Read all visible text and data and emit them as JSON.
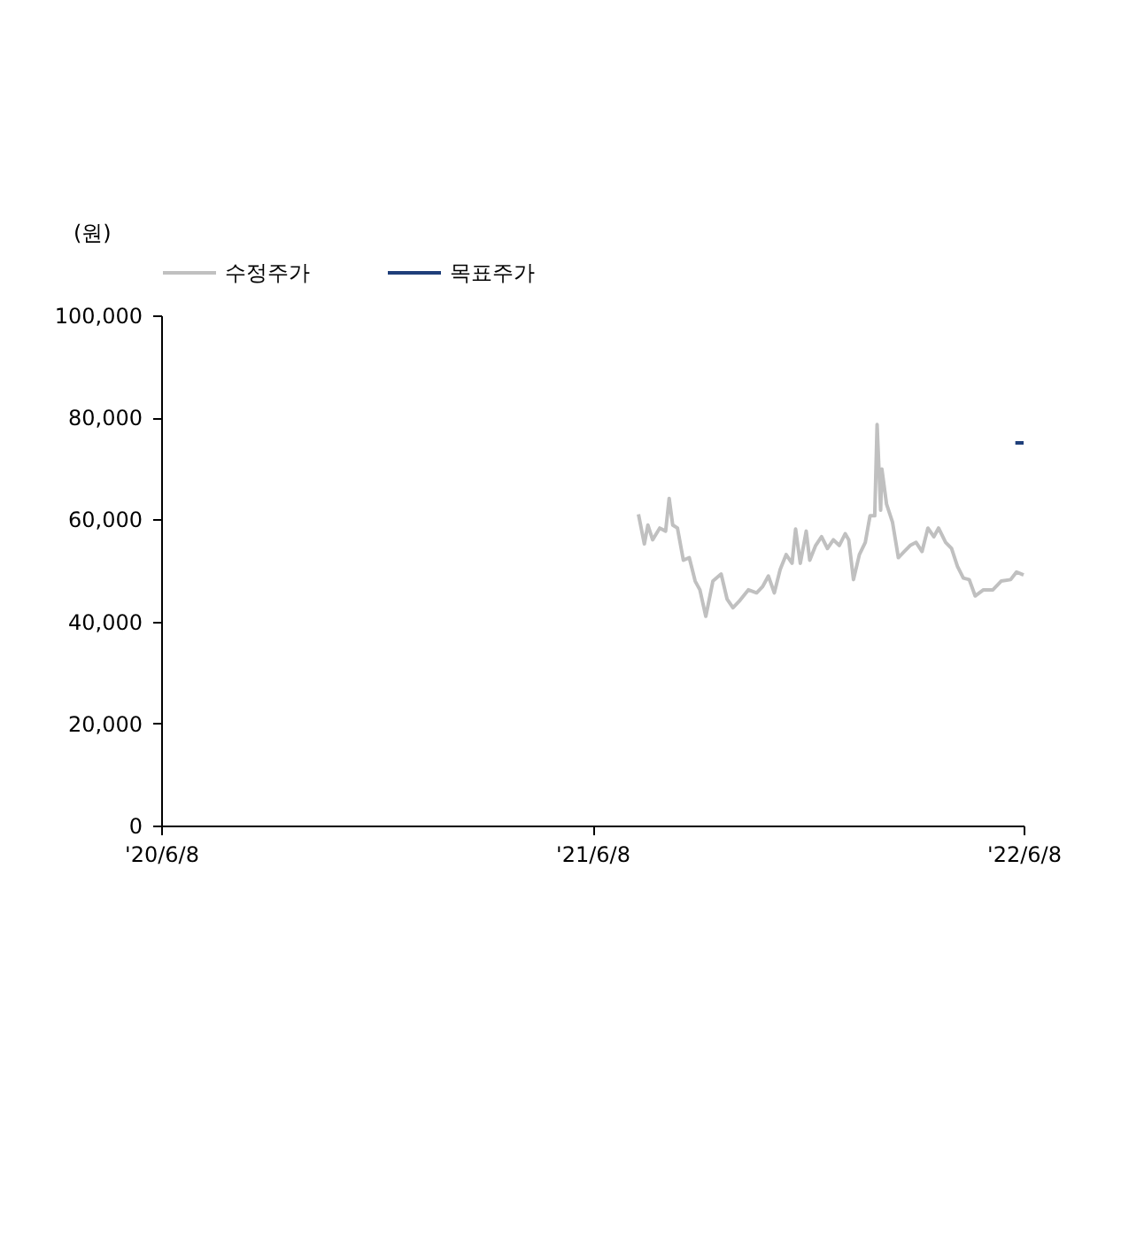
{
  "chart_data": {
    "type": "line",
    "ylabel": "(원)",
    "xlim": [
      "2020-06-08",
      "2022-06-08"
    ],
    "xticks": [
      {
        "value": "2020-06-08",
        "label": "'20/6/8"
      },
      {
        "value": "2021-06-08",
        "label": "'21/6/8"
      },
      {
        "value": "2022-06-08",
        "label": "'22/6/8"
      }
    ],
    "ylim": [
      0,
      100000
    ],
    "yticks": [
      0,
      {
        "value": 20000,
        "label": "20,000"
      },
      {
        "value": 40000,
        "label": "40,000"
      },
      {
        "value": 60000,
        "label": "60,000"
      },
      {
        "value": 80000,
        "label": "80,000"
      },
      {
        "value": 100000,
        "label": "100,000"
      }
    ],
    "grid": false,
    "legend": "top",
    "marker": "none",
    "line_style": "solid",
    "series": [
      {
        "name": "수정주가",
        "color": "#c0c0c0",
        "x": [
          "2021-07-17",
          "2021-07-22",
          "2021-07-25",
          "2021-07-29",
          "2021-08-04",
          "2021-08-09",
          "2021-08-12",
          "2021-08-15",
          "2021-08-19",
          "2021-08-24",
          "2021-08-29",
          "2021-09-03",
          "2021-09-07",
          "2021-09-12",
          "2021-09-15",
          "2021-09-18",
          "2021-09-25",
          "2021-09-30",
          "2021-10-05",
          "2021-10-10",
          "2021-10-18",
          "2021-10-25",
          "2021-10-30",
          "2021-11-04",
          "2021-11-09",
          "2021-11-14",
          "2021-11-19",
          "2021-11-24",
          "2021-11-27",
          "2021-12-01",
          "2021-12-06",
          "2021-12-09",
          "2021-12-14",
          "2021-12-19",
          "2021-12-24",
          "2021-12-29",
          "2022-01-03",
          "2022-01-08",
          "2022-01-11",
          "2022-01-15",
          "2022-01-20",
          "2022-01-25",
          "2022-01-29",
          "2022-02-02",
          "2022-02-04",
          "2022-02-07",
          "2022-02-08",
          "2022-02-12",
          "2022-02-17",
          "2022-02-22",
          "2022-02-27",
          "2022-03-04",
          "2022-03-09",
          "2022-03-14",
          "2022-03-19",
          "2022-03-24",
          "2022-03-28",
          "2022-04-03",
          "2022-04-08",
          "2022-04-13",
          "2022-04-18",
          "2022-04-23",
          "2022-04-28",
          "2022-05-05",
          "2022-05-13",
          "2022-05-20",
          "2022-05-28",
          "2022-06-02",
          "2022-06-08"
        ],
        "values": [
          61000,
          55200,
          58900,
          56000,
          58300,
          57700,
          64100,
          58900,
          58300,
          52000,
          52500,
          47900,
          46200,
          41000,
          44400,
          47900,
          49300,
          44400,
          42700,
          43900,
          46200,
          45600,
          46800,
          48900,
          45600,
          50200,
          53100,
          51400,
          58100,
          51400,
          57700,
          52000,
          54900,
          56600,
          54300,
          56000,
          54900,
          57200,
          56000,
          48200,
          53100,
          55500,
          60700,
          60700,
          78600,
          61800,
          69900,
          63000,
          59500,
          52500,
          53700,
          54900,
          55500,
          53700,
          58300,
          56600,
          58300,
          55500,
          54300,
          50800,
          48500,
          48200,
          45000,
          46200,
          46200,
          47900,
          48200,
          49700,
          49100
        ]
      },
      {
        "name": "목표주가",
        "color": "#1f3f7a",
        "x": [
          "2022-06-01",
          "2022-06-08"
        ],
        "values": [
          75000,
          75000
        ]
      }
    ]
  }
}
